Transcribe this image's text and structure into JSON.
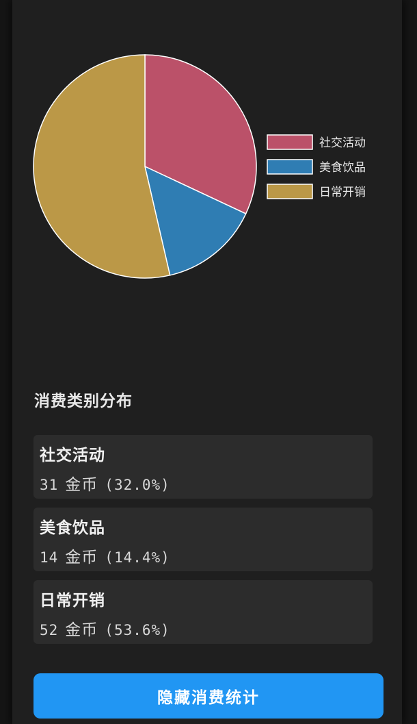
{
  "chart_data": {
    "type": "pie",
    "categories": [
      "社交活动",
      "美食饮品",
      "日常开销"
    ],
    "values": [
      31,
      14,
      52
    ],
    "percentages": [
      "32.0%",
      "14.4%",
      "53.6%"
    ],
    "colors": [
      "#bb5169",
      "#2f7db3",
      "#bb9847"
    ],
    "legend_position": "right"
  },
  "summary": {
    "title": "消费类别分布",
    "unit": "金币",
    "items": [
      {
        "name": "社交活动",
        "amount": "31",
        "percent": "(32.0%)"
      },
      {
        "name": "美食饮品",
        "amount": "14",
        "percent": "(14.4%)"
      },
      {
        "name": "日常开销",
        "amount": "52",
        "percent": "(53.6%)"
      }
    ]
  },
  "button": {
    "label": "隐藏消费统计"
  }
}
